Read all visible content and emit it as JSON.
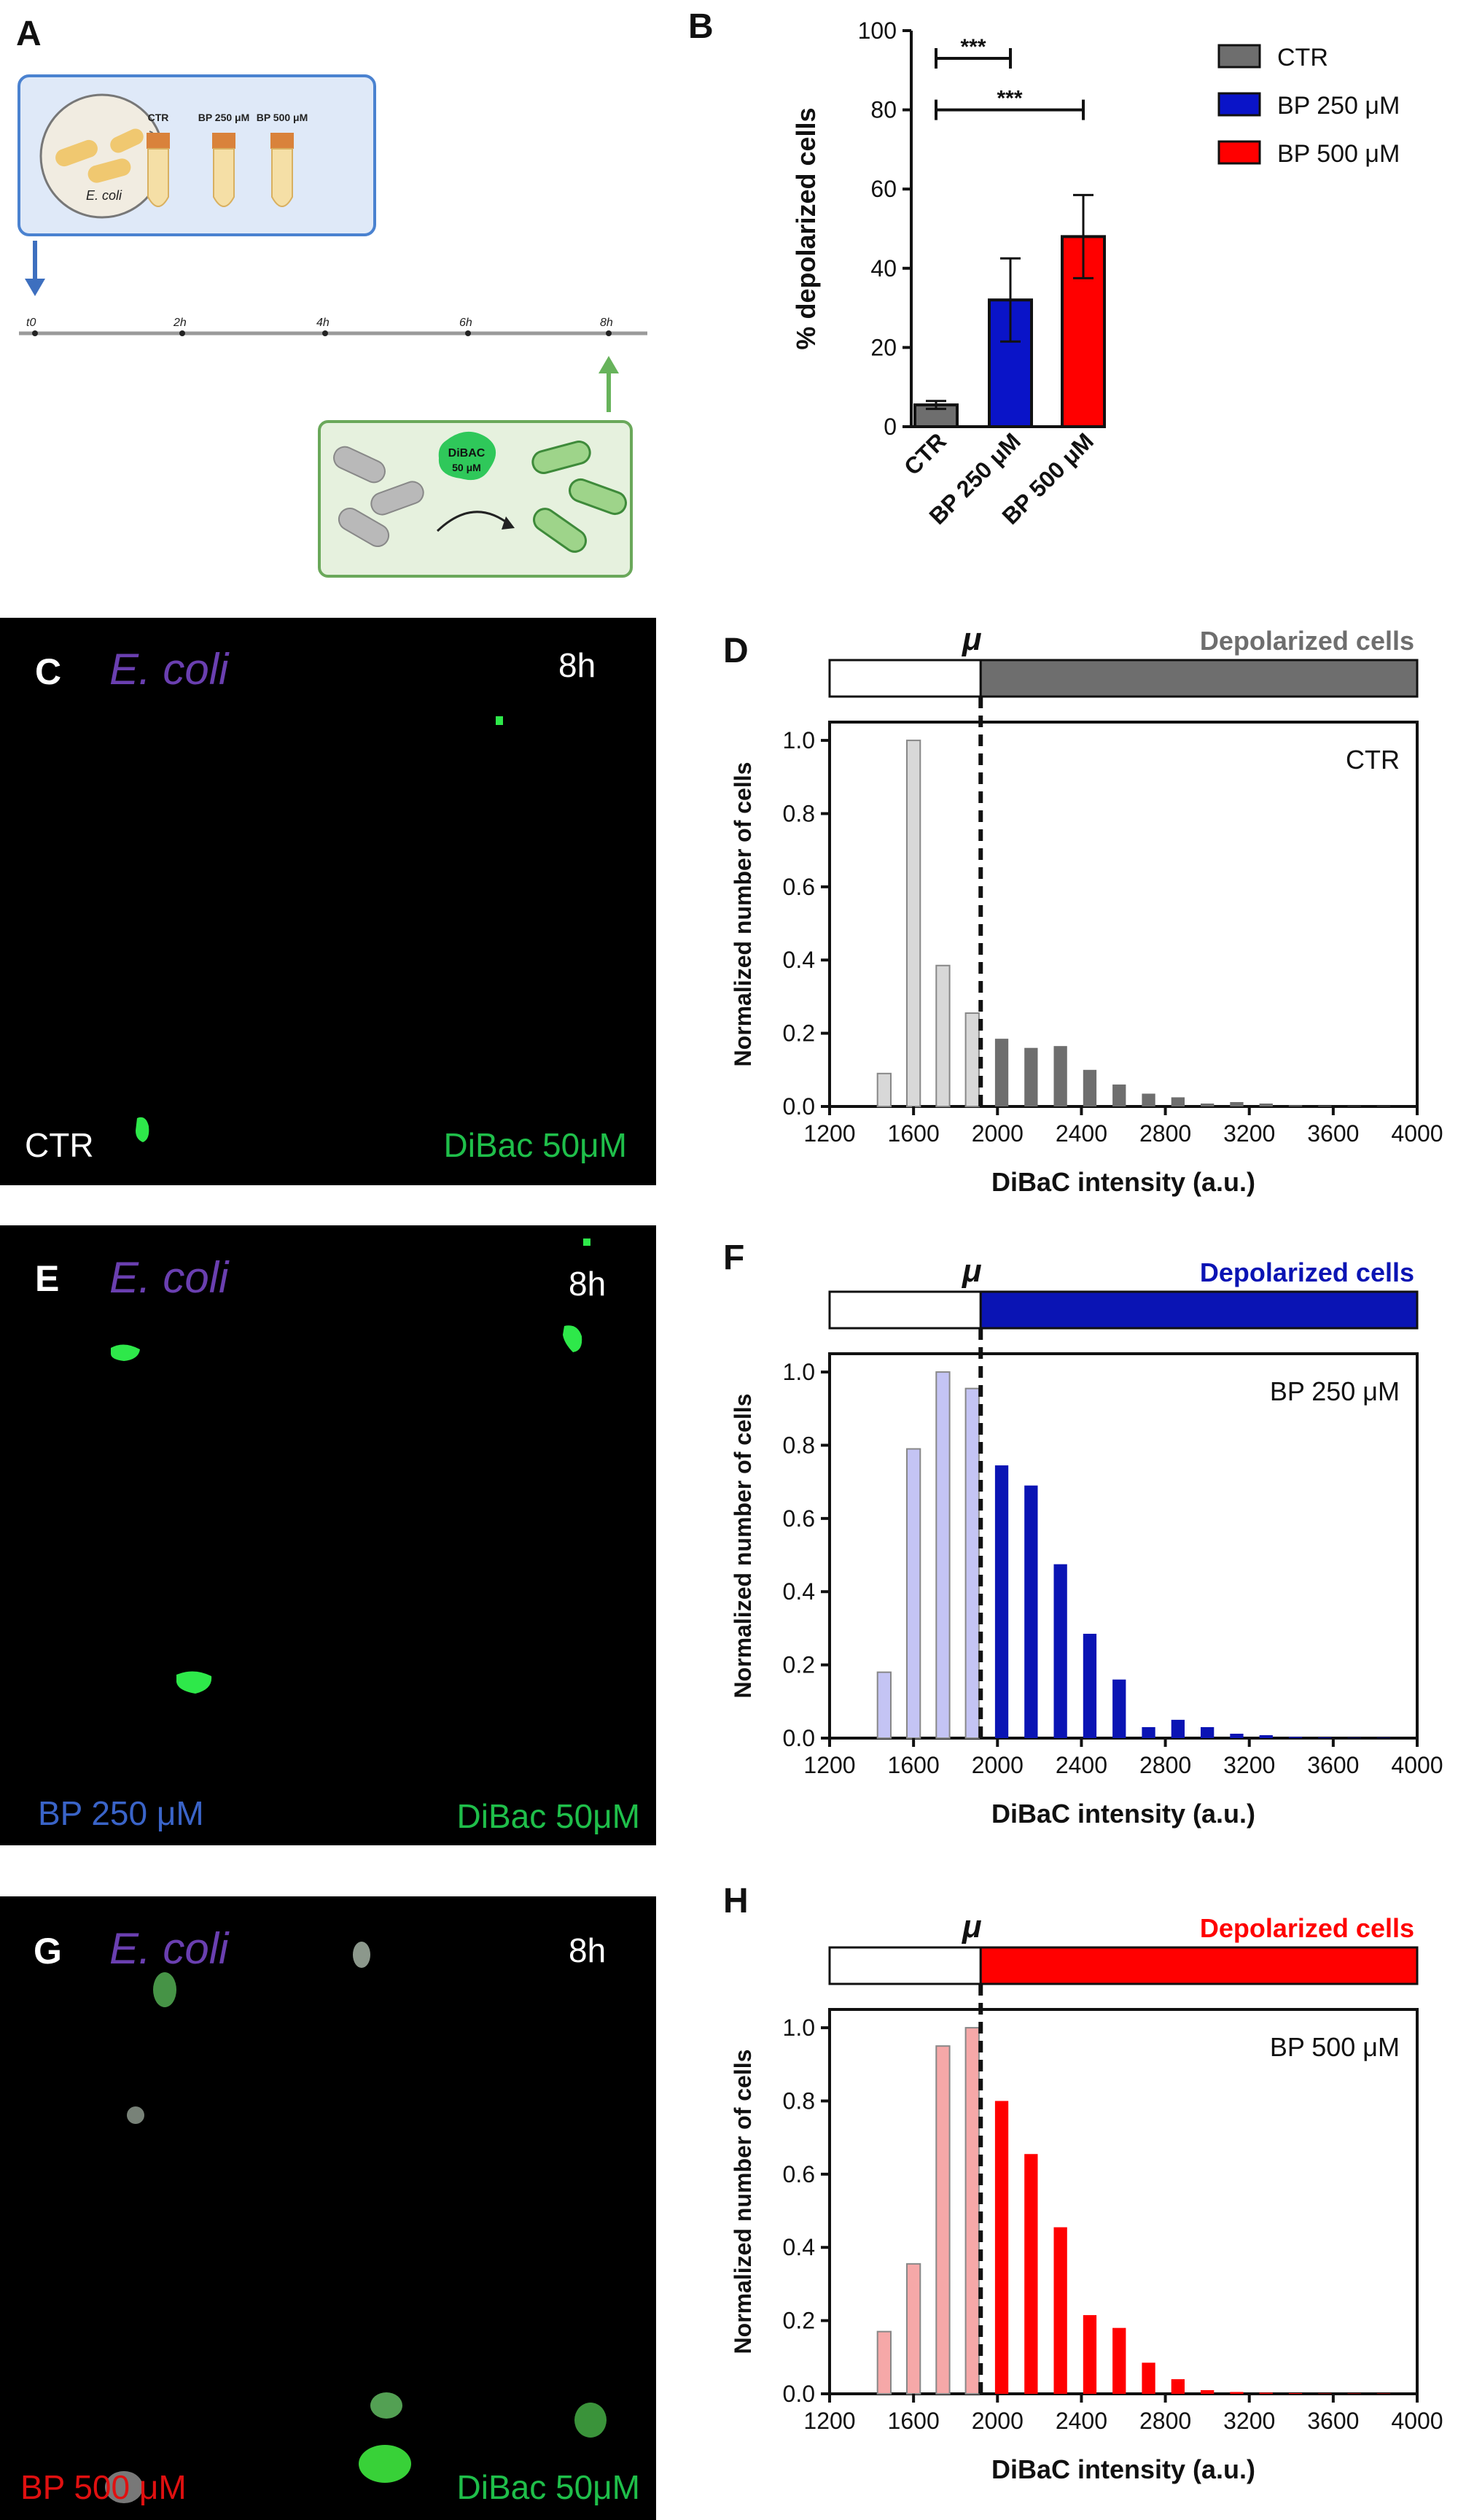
{
  "panel_letters": {
    "a": "A",
    "b": "B",
    "c": "C",
    "d": "D",
    "e": "E",
    "f": "F",
    "g": "G",
    "h": "H"
  },
  "panel_a": {
    "dish_label": "E. coli",
    "tubes": [
      "CTR",
      "BP 250 μM",
      "BP 500 μM"
    ],
    "timeline": [
      "t0",
      "2h",
      "4h",
      "6h",
      "8h"
    ],
    "dye_label": "DiBAC",
    "dye_conc": "50 μM"
  },
  "micrographs": [
    {
      "organism": "E. coli",
      "time": "8h",
      "condition": "CTR",
      "dye": "DiBac 50μM",
      "condition_color": "#ffffff"
    },
    {
      "organism": "E. coli",
      "time": "8h",
      "condition": "BP 250 μM",
      "dye": "DiBac 50μM",
      "condition_color": "#3a64c8"
    },
    {
      "organism": "E. coli",
      "time": "8h",
      "condition": "BP 500 μM",
      "dye": "DiBac 50μM",
      "condition_color": "#e01010"
    }
  ],
  "colors": {
    "ctr": "#6e6e6e",
    "bp250": "#0a14c8",
    "bp500": "#ff0000",
    "organism_text": "#6a3fb0",
    "dye_text": "#1fbf4a"
  },
  "chart_data": [
    {
      "type": "bar",
      "categories": [
        "CTR",
        "BP 250 μM",
        "BP 500 μM"
      ],
      "values": [
        5.5,
        32,
        48
      ],
      "errors": [
        1,
        10.5,
        10.5
      ],
      "colors": [
        "#6e6e6e",
        "#0a14c8",
        "#ff0000"
      ],
      "ylabel": "% depolarized cells",
      "ylim": [
        0,
        100
      ],
      "yticks": [
        0,
        20,
        40,
        60,
        80,
        100
      ],
      "legend": [
        "CTR",
        "BP 250 μM",
        "BP 500 μM"
      ],
      "legend_position": "right",
      "significance": [
        {
          "from": "CTR",
          "to": "BP 250 μM",
          "label": "***",
          "y": 93
        },
        {
          "from": "CTR",
          "to": "BP 500 μM",
          "label": "***",
          "y": 80
        }
      ]
    },
    {
      "type": "bar",
      "annotation": "CTR",
      "bar_label": "Depolarized cells",
      "mu_label": "μ",
      "threshold": 1920,
      "xlabel": "DiBaC intensity (a.u.)",
      "ylabel": "Normalized number of cells",
      "xlim": [
        1200,
        4000
      ],
      "ylim": [
        0,
        1.05
      ],
      "xticks": [
        1200,
        1600,
        2000,
        2400,
        2800,
        3200,
        3600,
        4000
      ],
      "yticks": [
        0.0,
        0.2,
        0.4,
        0.6,
        0.8,
        1.0
      ],
      "light_color": "#d8d8d8",
      "dark_color": "#6e6e6e",
      "bins": [
        1460,
        1600,
        1740,
        1880,
        2020,
        2160,
        2300,
        2440,
        2580,
        2720,
        2860,
        3000,
        3140,
        3280,
        3420,
        3560,
        3700,
        3840
      ],
      "values": [
        0.09,
        1.0,
        0.385,
        0.255,
        0.185,
        0.16,
        0.165,
        0.1,
        0.06,
        0.035,
        0.025,
        0.008,
        0.012,
        0.008,
        0.003,
        0.002,
        0.001,
        0.001
      ]
    },
    {
      "type": "bar",
      "annotation": "BP 250 μM",
      "bar_label": "Depolarized cells",
      "mu_label": "μ",
      "threshold": 1920,
      "xlabel": "DiBaC intensity (a.u.)",
      "ylabel": "Normalized number of cells",
      "xlim": [
        1200,
        4000
      ],
      "ylim": [
        0,
        1.05
      ],
      "xticks": [
        1200,
        1600,
        2000,
        2400,
        2800,
        3200,
        3600,
        4000
      ],
      "yticks": [
        0.0,
        0.2,
        0.4,
        0.6,
        0.8,
        1.0
      ],
      "light_color": "#c4c4f4",
      "dark_color": "#0a14b4",
      "bins": [
        1460,
        1600,
        1740,
        1880,
        2020,
        2160,
        2300,
        2440,
        2580,
        2720,
        2860,
        3000,
        3140,
        3280,
        3420,
        3560,
        3700,
        3840
      ],
      "values": [
        0.18,
        0.79,
        1.0,
        0.955,
        0.745,
        0.69,
        0.475,
        0.285,
        0.16,
        0.03,
        0.05,
        0.03,
        0.012,
        0.008,
        0.003,
        0.002,
        0.001,
        0.001
      ]
    },
    {
      "type": "bar",
      "annotation": "BP 500 μM",
      "bar_label": "Depolarized cells",
      "mu_label": "μ",
      "threshold": 1920,
      "xlabel": "DiBaC intensity (a.u.)",
      "ylabel": "Normalized number of cells",
      "xlim": [
        1200,
        4000
      ],
      "ylim": [
        0,
        1.05
      ],
      "xticks": [
        1200,
        1600,
        2000,
        2400,
        2800,
        3200,
        3600,
        4000
      ],
      "yticks": [
        0.0,
        0.2,
        0.4,
        0.6,
        0.8,
        1.0
      ],
      "light_color": "#f6a8a8",
      "dark_color": "#ff0000",
      "bins": [
        1460,
        1600,
        1740,
        1880,
        2020,
        2160,
        2300,
        2440,
        2580,
        2720,
        2860,
        3000,
        3140,
        3280,
        3420,
        3560,
        3700,
        3840
      ],
      "values": [
        0.17,
        0.355,
        0.95,
        1.0,
        0.8,
        0.655,
        0.455,
        0.215,
        0.18,
        0.085,
        0.04,
        0.01,
        0.005,
        0.003,
        0.002,
        0.001,
        0.001,
        0.001
      ]
    }
  ]
}
